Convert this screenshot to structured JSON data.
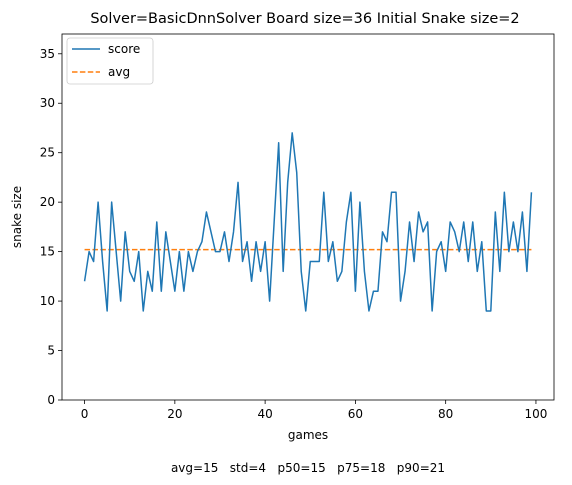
{
  "chart_data": {
    "type": "line",
    "title": "Solver=BasicDnnSolver   Board size=36   Initial Snake size=2",
    "xlabel": "games",
    "ylabel": "snake size",
    "xlim": [
      -5,
      104
    ],
    "ylim": [
      0,
      37
    ],
    "x_ticks": [
      0,
      20,
      40,
      60,
      80,
      100
    ],
    "y_ticks": [
      0,
      5,
      10,
      15,
      20,
      25,
      30,
      35
    ],
    "grid": false,
    "legend": "top-left",
    "series": [
      {
        "name": "score",
        "color": "#1f77b4",
        "style": "solid",
        "x_start": 0,
        "values": [
          12,
          15,
          14,
          20,
          14,
          9,
          20,
          15,
          10,
          17,
          13,
          12,
          15,
          9,
          13,
          11,
          18,
          11,
          17,
          14,
          11,
          15,
          11,
          15,
          13,
          15,
          16,
          19,
          17,
          15,
          15,
          17,
          14,
          17,
          22,
          14,
          16,
          12,
          16,
          13,
          16,
          10,
          18,
          26,
          13,
          22,
          27,
          23,
          13,
          9,
          14,
          14,
          14,
          21,
          14,
          16,
          12,
          13,
          18,
          21,
          11,
          20,
          13,
          9,
          11,
          11,
          17,
          16,
          21,
          21,
          10,
          13,
          18,
          14,
          19,
          17,
          18,
          9,
          15,
          16,
          13,
          18,
          17,
          15,
          18,
          14,
          18,
          13,
          16,
          9,
          9,
          19,
          13,
          21,
          15,
          18,
          15,
          19,
          13,
          21
        ]
      },
      {
        "name": "avg",
        "color": "#ff7f0e",
        "style": "dashed",
        "x": [
          0,
          99
        ],
        "values": [
          15.2,
          15.2
        ]
      }
    ],
    "footer": "avg=15   std=4   p50=15   p75=18   p90=21"
  }
}
